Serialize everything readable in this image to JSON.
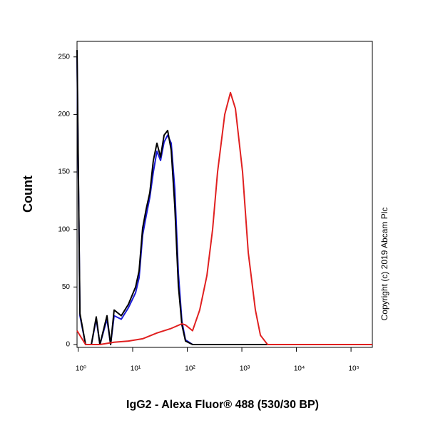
{
  "chart_data": {
    "type": "line",
    "xlabel": "IgG2 - Alexa Fluor® 488 (530/30 BP)",
    "ylabel": "Count",
    "annotation": "Copyright (c) 2019 Abcam Plc",
    "xscale": "log",
    "xlim": [
      0.956,
      246000
    ],
    "ylim": [
      -2.5,
      263.5
    ],
    "xticks": [
      {
        "value": 1,
        "label": "10⁰"
      },
      {
        "value": 10,
        "label": "10¹"
      },
      {
        "value": 100,
        "label": "10²"
      },
      {
        "value": 1000,
        "label": "10³"
      },
      {
        "value": 10000,
        "label": "10⁴"
      },
      {
        "value": 100000,
        "label": "10⁵"
      }
    ],
    "yticks": [
      0,
      50,
      100,
      150,
      200,
      250
    ],
    "grid": false,
    "series": [
      {
        "color": "#1a1ad6",
        "x": [
          0.956,
          1.08,
          1.37,
          1.75,
          2.15,
          2.51,
          3.38,
          3.94,
          4.57,
          6.18,
          8.36,
          11.3,
          13.1,
          15.2,
          17.7,
          20.6,
          23.9,
          27.8,
          32.4,
          37.6,
          43.7,
          50.8,
          59.1,
          68.7,
          79.8,
          92.8,
          125,
          169,
          309,
          246000
        ],
        "values": [
          250,
          25,
          0,
          0,
          22,
          0,
          22,
          0,
          25,
          22,
          32,
          45,
          58,
          95,
          112,
          128,
          150,
          168,
          160,
          176,
          182,
          175,
          135,
          62,
          20,
          4,
          0,
          0,
          0,
          0
        ]
      },
      {
        "color": "#000000",
        "x": [
          0.956,
          1.08,
          1.37,
          1.75,
          2.15,
          2.51,
          3.38,
          3.94,
          4.57,
          6.18,
          8.36,
          11.3,
          13.1,
          15.2,
          17.7,
          20.6,
          23.9,
          27.8,
          32.4,
          37.6,
          43.7,
          50.8,
          59.1,
          68.7,
          79.8,
          92.8,
          125,
          169,
          309,
          246000
        ],
        "values": [
          256,
          27,
          0,
          0,
          24,
          0,
          25,
          0,
          30,
          25,
          35,
          50,
          64,
          101,
          118,
          132,
          160,
          175,
          163,
          182,
          186,
          169,
          120,
          51,
          17,
          3,
          0,
          0,
          0,
          0
        ]
      },
      {
        "color": "#e02020",
        "x": [
          0.956,
          1.37,
          2.51,
          4.57,
          8.36,
          15.2,
          27.8,
          50.8,
          79.8,
          92.8,
          125,
          169,
          197,
          229,
          291,
          359,
          486,
          618,
          763,
          1030,
          1310,
          1770,
          2190,
          2960,
          11500,
          246000
        ],
        "values": [
          12,
          0,
          0,
          2,
          3,
          5,
          10,
          14,
          18,
          17,
          12,
          30,
          45,
          60,
          100,
          150,
          200,
          219,
          205,
          150,
          80,
          30,
          8,
          0,
          0,
          0
        ]
      }
    ]
  }
}
